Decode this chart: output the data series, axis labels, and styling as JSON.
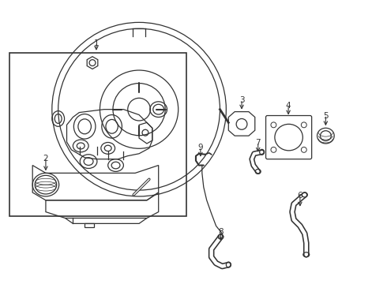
{
  "background_color": "#ffffff",
  "line_color": "#333333",
  "line_width": 0.9,
  "fig_width": 4.9,
  "fig_height": 3.6,
  "dpi": 100
}
